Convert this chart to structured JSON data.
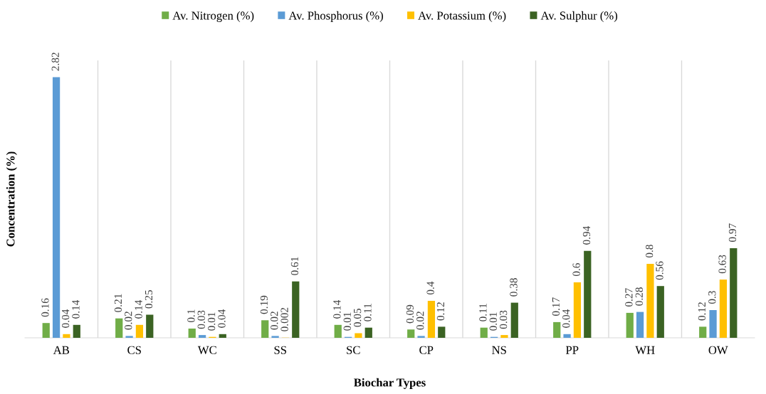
{
  "chart_data": {
    "type": "bar",
    "xlabel": "Biochar Types",
    "ylabel": "Concentration (%)",
    "categories": [
      "AB",
      "CS",
      "WC",
      "SS",
      "SC",
      "CP",
      "NS",
      "PP",
      "WH",
      "OW"
    ],
    "series": [
      {
        "name": "Av. Nitrogen (%)",
        "color": "#70ad47",
        "values": [
          0.16,
          0.21,
          0.1,
          0.19,
          0.14,
          0.09,
          0.11,
          0.17,
          0.27,
          0.12
        ]
      },
      {
        "name": "Av. Phosphorus (%)",
        "color": "#5b9bd5",
        "values": [
          2.82,
          0.02,
          0.03,
          0.02,
          0.01,
          0.02,
          0.01,
          0.04,
          0.28,
          0.3
        ]
      },
      {
        "name": "Av. Potassium (%)",
        "color": "#ffc000",
        "values": [
          0.04,
          0.14,
          0.01,
          0.002,
          0.05,
          0.4,
          0.03,
          0.6,
          0.8,
          0.63
        ]
      },
      {
        "name": "Av. Sulphur (%)",
        "color": "#3b6323",
        "values": [
          0.14,
          0.25,
          0.04,
          0.61,
          0.11,
          0.12,
          0.38,
          0.94,
          0.56,
          0.97
        ]
      }
    ],
    "ylim": [
      0,
      3
    ],
    "data_labels": true,
    "grid": "x",
    "legend": "top",
    "tick_labels": "x"
  }
}
